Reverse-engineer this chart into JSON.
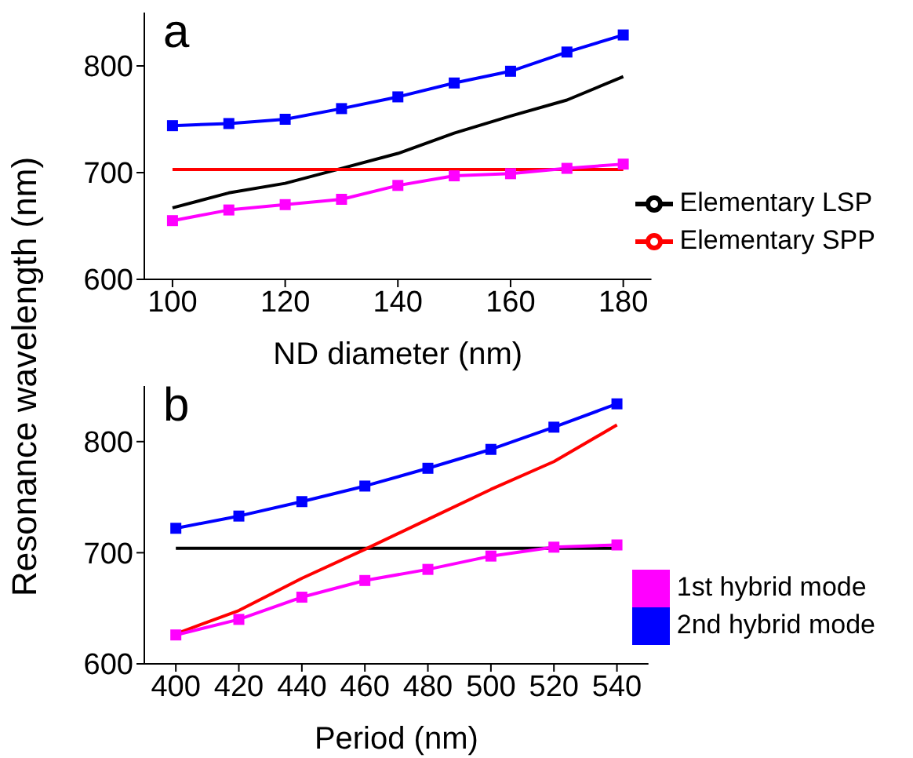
{
  "chart_data": [
    {
      "type": "line",
      "annotations": [
        "a"
      ],
      "xlabel": "ND diameter (nm)",
      "ylabel": "Resonance wavelength (nm)",
      "x": [
        100,
        110,
        120,
        130,
        140,
        150,
        160,
        170,
        180
      ],
      "xlim": [
        95,
        185
      ],
      "xticks": [
        100,
        120,
        140,
        160,
        180
      ],
      "ylim": [
        600,
        850
      ],
      "yticks": [
        600,
        700,
        800
      ],
      "legend": "bottom right",
      "line_style": "solid",
      "series": [
        {
          "color": "#0000ff",
          "marker": "square",
          "values": [
            744,
            746,
            750,
            760,
            771,
            784,
            795,
            813,
            829
          ]
        },
        {
          "name": "Elementary LSP",
          "color": "#000000",
          "marker": "none",
          "values": [
            667,
            681,
            690,
            704,
            718,
            737,
            753,
            768,
            790
          ]
        },
        {
          "name": "Elementary SPP",
          "color": "#ff0000",
          "marker": "none",
          "values": [
            703,
            703,
            703,
            703,
            703,
            703,
            703,
            703,
            703
          ]
        },
        {
          "color": "#ff00ff",
          "marker": "square",
          "values": [
            655,
            665,
            670,
            675,
            688,
            697,
            699,
            704,
            708
          ]
        }
      ]
    },
    {
      "type": "line",
      "annotations": [
        "b"
      ],
      "xlabel": "Period (nm)",
      "x": [
        400,
        420,
        440,
        460,
        480,
        500,
        520,
        540
      ],
      "xlim": [
        390,
        550
      ],
      "xticks": [
        400,
        420,
        440,
        460,
        480,
        500,
        520,
        540
      ],
      "ylim": [
        600,
        850
      ],
      "yticks": [
        600,
        700,
        800
      ],
      "legend": "bottom right",
      "line_style": "solid",
      "series": [
        {
          "color": "#000000",
          "marker": "none",
          "values": [
            704,
            704,
            704,
            704,
            704,
            704,
            704,
            704
          ]
        },
        {
          "color": "#ff0000",
          "marker": "none",
          "values": [
            627,
            648,
            677,
            703,
            730,
            757,
            782,
            815
          ]
        },
        {
          "name": "1st hybrid mode",
          "color": "#ff00ff",
          "marker": "square",
          "values": [
            626,
            640,
            660,
            675,
            685,
            697,
            705,
            707
          ]
        },
        {
          "name": "2nd hybrid mode",
          "color": "#0000ff",
          "marker": "square",
          "values": [
            722,
            733,
            746,
            760,
            776,
            793,
            813,
            834
          ]
        }
      ]
    }
  ]
}
